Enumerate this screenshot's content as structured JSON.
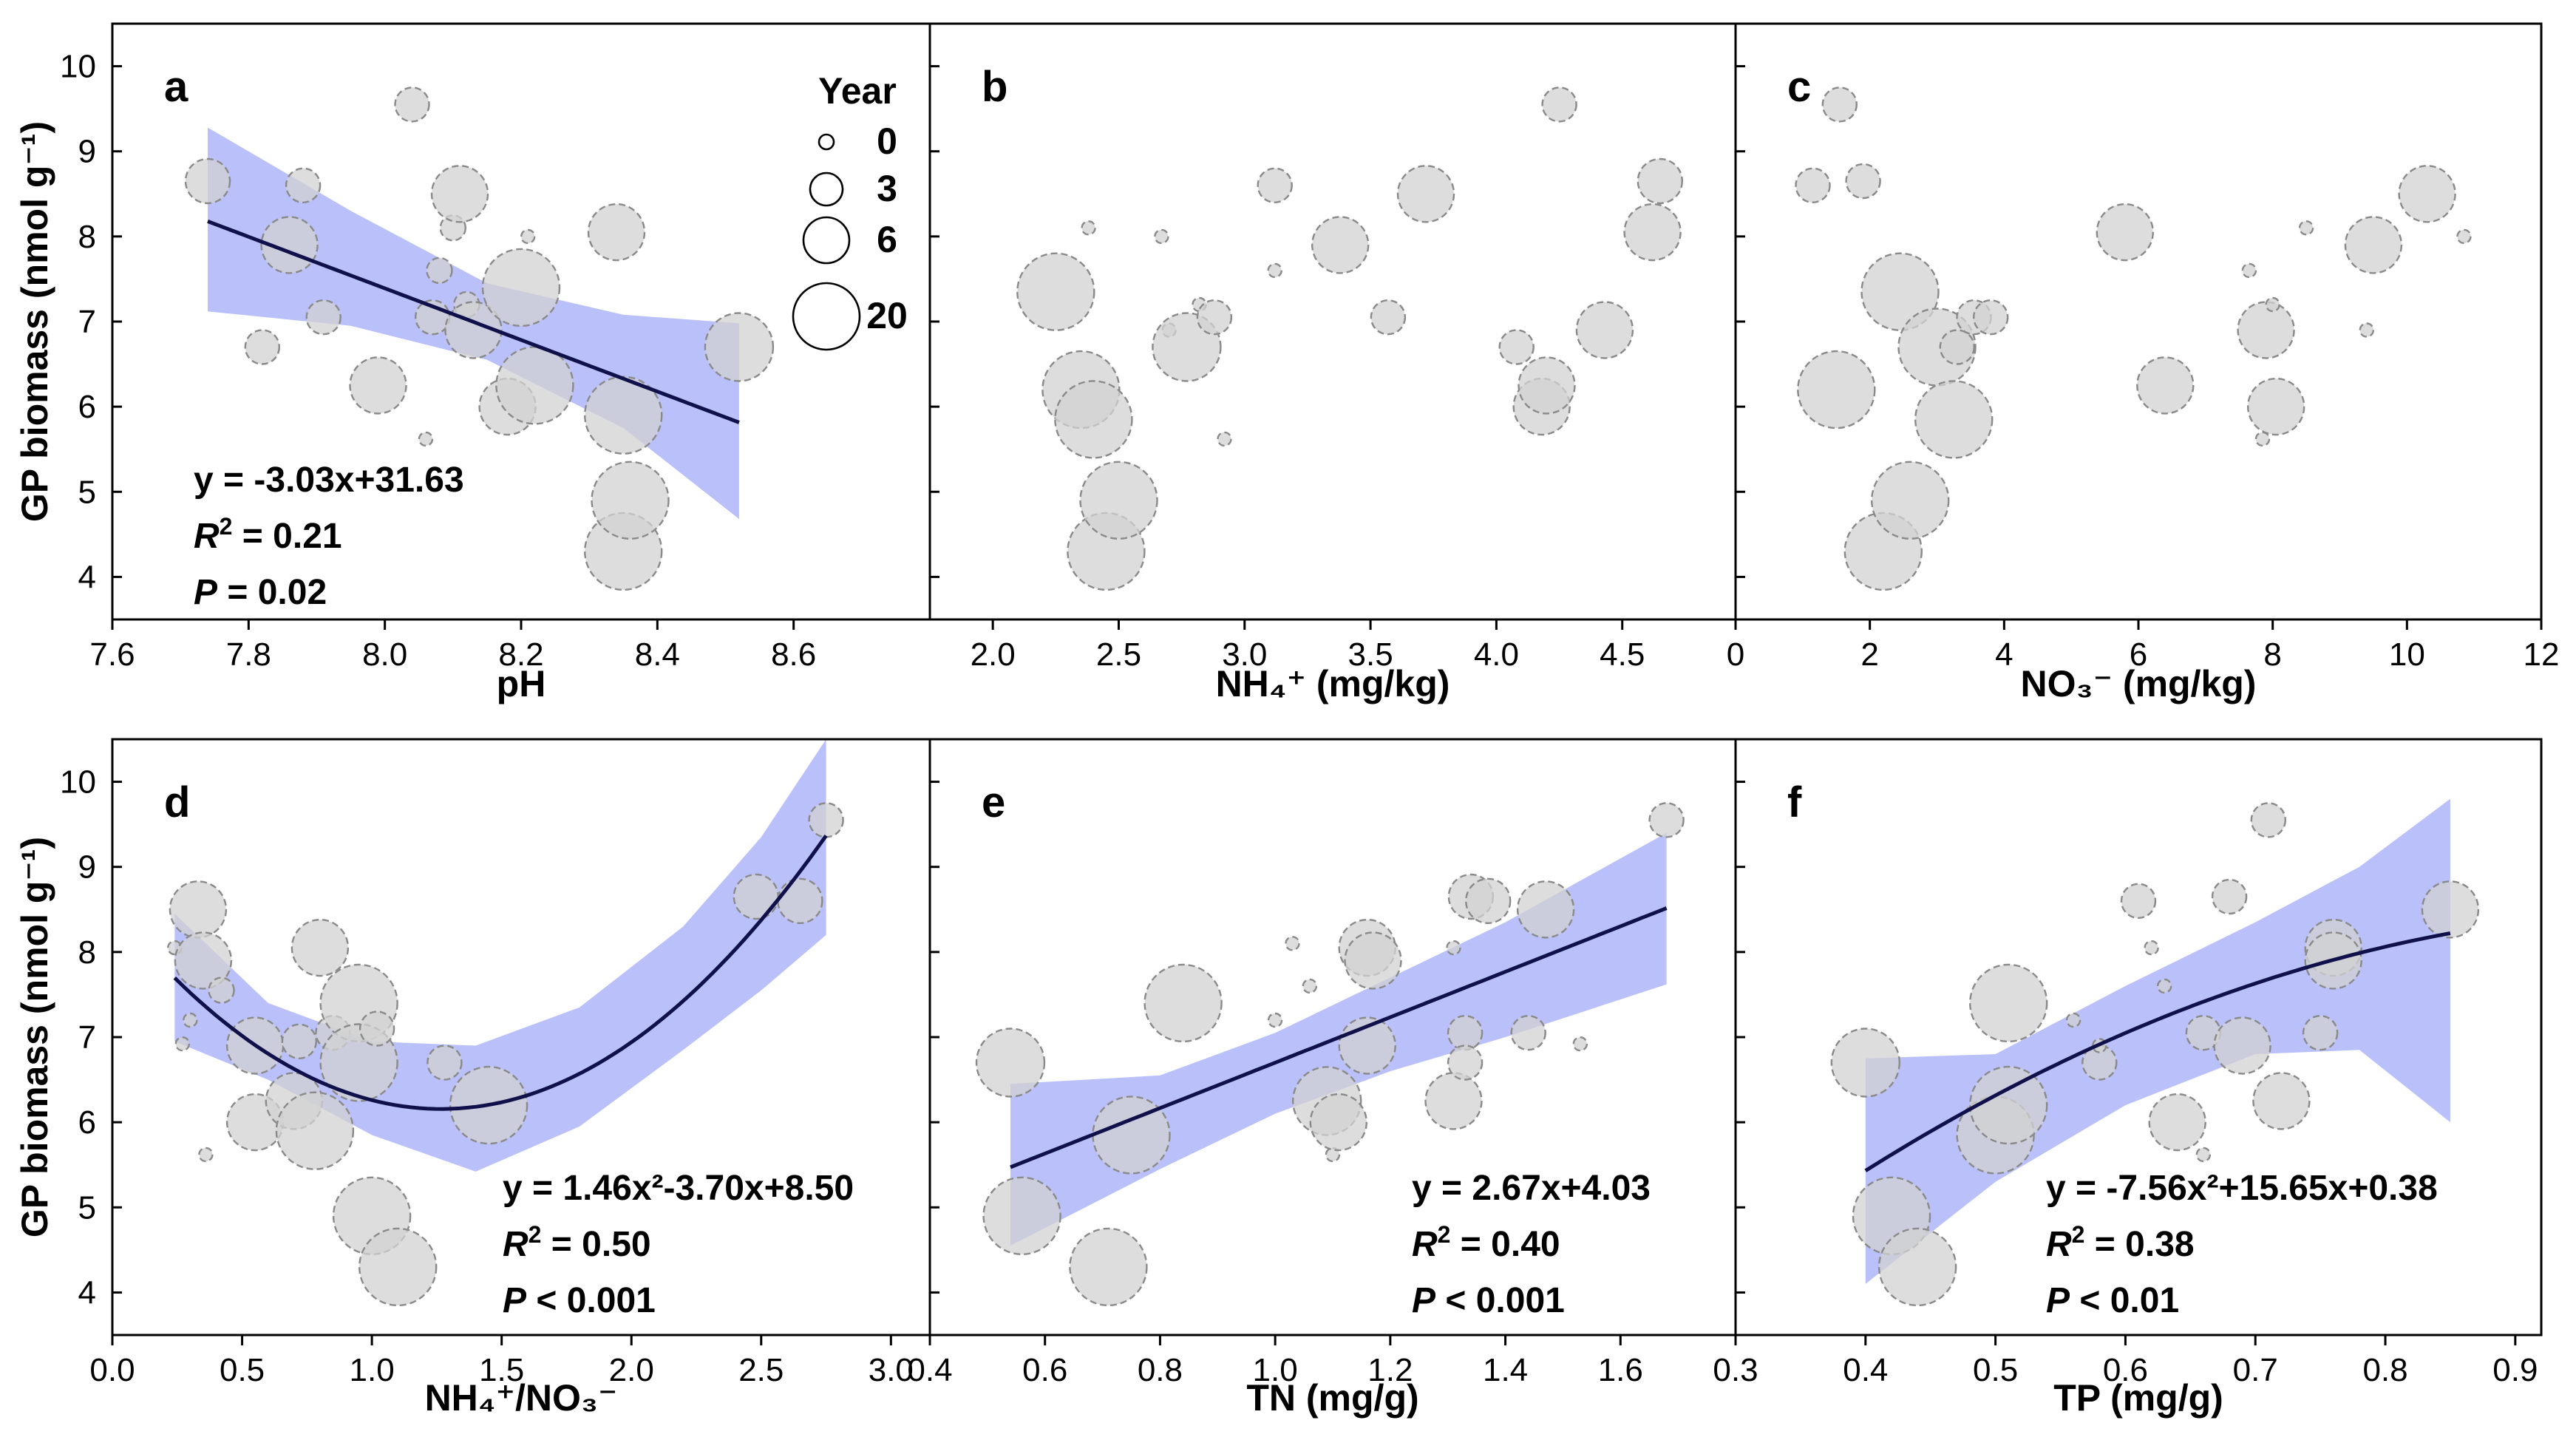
{
  "figure": {
    "y_axis_label": "GP biomass (nmol g⁻¹)",
    "legend": {
      "title": "Year",
      "entries": [
        "0",
        "3",
        "6",
        "20"
      ]
    }
  },
  "chart_data": [
    {
      "panel": "a",
      "type": "scatter",
      "xlabel": "pH",
      "xlim": [
        7.6,
        8.8
      ],
      "xticks": [
        "7.6",
        "7.8",
        "8.0",
        "8.2",
        "8.4",
        "8.6"
      ],
      "ylim": [
        3.5,
        10.5
      ],
      "yticks": [
        "4",
        "5",
        "6",
        "7",
        "8",
        "9",
        "10"
      ],
      "fit": {
        "kind": "linear",
        "coef": [
          31.63,
          -3.03
        ],
        "x_range": [
          7.74,
          8.52
        ],
        "ci_lower": [
          [
            7.74,
            7.12
          ],
          [
            7.95,
            6.95
          ],
          [
            8.15,
            6.55
          ],
          [
            8.35,
            5.75
          ],
          [
            8.52,
            4.68
          ]
        ],
        "ci_upper": [
          [
            7.74,
            9.28
          ],
          [
            7.95,
            8.3
          ],
          [
            8.15,
            7.45
          ],
          [
            8.35,
            7.08
          ],
          [
            8.52,
            6.98
          ]
        ]
      },
      "annotations": {
        "equation": "y = -3.03x+31.63",
        "r2": "= 0.21",
        "p": "= 0.02"
      },
      "points": [
        [
          7.74,
          8.65,
          3
        ],
        [
          7.82,
          6.7,
          2
        ],
        [
          7.86,
          7.9,
          4
        ],
        [
          7.88,
          8.6,
          2
        ],
        [
          7.91,
          7.05,
          2
        ],
        [
          7.99,
          6.25,
          4
        ],
        [
          8.04,
          9.55,
          2
        ],
        [
          8.06,
          5.62,
          0
        ],
        [
          8.07,
          7.05,
          2
        ],
        [
          8.08,
          7.6,
          1
        ],
        [
          8.1,
          8.1,
          1
        ],
        [
          8.11,
          8.5,
          4
        ],
        [
          8.12,
          7.2,
          1
        ],
        [
          8.13,
          6.9,
          4
        ],
        [
          8.18,
          6.0,
          4
        ],
        [
          8.2,
          7.4,
          6
        ],
        [
          8.21,
          8.0,
          0
        ],
        [
          8.22,
          6.25,
          6
        ],
        [
          8.34,
          8.05,
          4
        ],
        [
          8.35,
          5.9,
          6
        ],
        [
          8.35,
          4.3,
          6
        ],
        [
          8.36,
          4.9,
          6
        ],
        [
          8.52,
          6.7,
          5
        ]
      ]
    },
    {
      "panel": "b",
      "type": "scatter",
      "xlabel": "NH₄⁺ (mg/kg)",
      "xlim": [
        1.75,
        4.95
      ],
      "xticks": [
        "2.0",
        "2.5",
        "3.0",
        "3.5",
        "4.0",
        "4.5"
      ],
      "ylim": [
        3.5,
        10.5
      ],
      "points": [
        [
          2.25,
          7.35,
          6
        ],
        [
          2.35,
          6.2,
          6
        ],
        [
          2.38,
          8.1,
          0
        ],
        [
          2.4,
          5.85,
          6
        ],
        [
          2.45,
          4.3,
          6
        ],
        [
          2.5,
          4.9,
          6
        ],
        [
          2.67,
          8.0,
          0
        ],
        [
          2.7,
          6.9,
          0
        ],
        [
          2.77,
          6.7,
          5
        ],
        [
          2.82,
          7.2,
          0
        ],
        [
          2.88,
          7.05,
          2
        ],
        [
          2.92,
          5.62,
          0
        ],
        [
          3.12,
          8.6,
          2
        ],
        [
          3.12,
          7.6,
          0
        ],
        [
          3.38,
          7.9,
          4
        ],
        [
          3.57,
          7.05,
          2
        ],
        [
          3.72,
          8.5,
          4
        ],
        [
          4.08,
          6.7,
          2
        ],
        [
          4.18,
          6.0,
          4
        ],
        [
          4.2,
          6.25,
          4
        ],
        [
          4.25,
          9.55,
          2
        ],
        [
          4.43,
          6.9,
          4
        ],
        [
          4.62,
          8.05,
          4
        ],
        [
          4.65,
          8.65,
          3
        ]
      ]
    },
    {
      "panel": "c",
      "type": "scatter",
      "xlabel": "NO₃⁻ (mg/kg)",
      "xlim": [
        0,
        12
      ],
      "xticks": [
        "0",
        "2",
        "4",
        "6",
        "8",
        "10",
        "12"
      ],
      "ylim": [
        3.5,
        10.5
      ],
      "points": [
        [
          1.15,
          8.6,
          2
        ],
        [
          1.5,
          6.2,
          6
        ],
        [
          1.55,
          9.55,
          2
        ],
        [
          1.9,
          8.65,
          2
        ],
        [
          2.2,
          4.3,
          6
        ],
        [
          2.45,
          7.35,
          6
        ],
        [
          2.6,
          4.9,
          6
        ],
        [
          3.0,
          6.7,
          6
        ],
        [
          3.25,
          5.85,
          6
        ],
        [
          3.3,
          6.7,
          2
        ],
        [
          3.55,
          7.05,
          2
        ],
        [
          3.8,
          7.05,
          2
        ],
        [
          5.8,
          8.05,
          4
        ],
        [
          6.4,
          6.25,
          4
        ],
        [
          7.65,
          7.6,
          0
        ],
        [
          7.85,
          5.62,
          0
        ],
        [
          7.9,
          6.9,
          4
        ],
        [
          8.0,
          7.2,
          0
        ],
        [
          8.05,
          6.0,
          4
        ],
        [
          8.5,
          8.1,
          0
        ],
        [
          9.4,
          6.9,
          0
        ],
        [
          9.5,
          7.9,
          4
        ],
        [
          10.3,
          8.5,
          4
        ],
        [
          10.85,
          8.0,
          0
        ]
      ]
    },
    {
      "panel": "d",
      "type": "scatter",
      "xlabel": "NH₄⁺/NO₃⁻",
      "xlim": [
        0.0,
        3.15
      ],
      "xticks": [
        "0.0",
        "0.5",
        "1.0",
        "1.5",
        "2.0",
        "2.5",
        "3.0"
      ],
      "ylim": [
        3.5,
        10.5
      ],
      "yticks": [
        "4",
        "5",
        "6",
        "7",
        "8",
        "9",
        "10"
      ],
      "fit": {
        "kind": "quadratic",
        "coef": [
          8.5,
          -3.7,
          1.46
        ],
        "x_range": [
          0.24,
          2.75
        ],
        "ci_lower": [
          [
            0.24,
            6.95
          ],
          [
            0.6,
            6.5
          ],
          [
            1.0,
            5.85
          ],
          [
            1.4,
            5.42
          ],
          [
            1.8,
            5.95
          ],
          [
            2.2,
            6.85
          ],
          [
            2.5,
            7.55
          ],
          [
            2.75,
            8.2
          ]
        ],
        "ci_upper": [
          [
            0.24,
            8.45
          ],
          [
            0.6,
            7.4
          ],
          [
            1.0,
            6.95
          ],
          [
            1.4,
            6.9
          ],
          [
            1.8,
            7.35
          ],
          [
            2.2,
            8.3
          ],
          [
            2.5,
            9.35
          ],
          [
            2.75,
            10.5
          ]
        ]
      },
      "annotations": {
        "equation": "y = 1.46x²-3.70x+8.50",
        "r2": "= 0.50",
        "p": "< 0.001"
      },
      "points": [
        [
          0.24,
          8.05,
          0
        ],
        [
          0.27,
          6.92,
          0
        ],
        [
          0.3,
          7.2,
          0
        ],
        [
          0.33,
          8.5,
          4
        ],
        [
          0.35,
          7.9,
          4
        ],
        [
          0.36,
          5.62,
          0
        ],
        [
          0.42,
          7.55,
          1
        ],
        [
          0.55,
          6.9,
          4
        ],
        [
          0.55,
          6.0,
          4
        ],
        [
          0.7,
          6.25,
          4
        ],
        [
          0.72,
          6.95,
          2
        ],
        [
          0.78,
          5.9,
          6
        ],
        [
          0.8,
          8.05,
          4
        ],
        [
          0.85,
          7.05,
          2
        ],
        [
          0.95,
          7.4,
          6
        ],
        [
          0.95,
          6.7,
          6
        ],
        [
          1.0,
          4.9,
          6
        ],
        [
          1.02,
          7.1,
          2
        ],
        [
          1.1,
          4.3,
          6
        ],
        [
          1.28,
          6.7,
          2
        ],
        [
          1.45,
          6.2,
          6
        ],
        [
          2.48,
          8.65,
          3
        ],
        [
          2.65,
          8.6,
          3
        ],
        [
          2.75,
          9.55,
          2
        ]
      ]
    },
    {
      "panel": "e",
      "type": "scatter",
      "xlabel": "TN (mg/g)",
      "xlim": [
        0.4,
        1.8
      ],
      "xticks": [
        "0.4",
        "0.6",
        "0.8",
        "1.0",
        "1.2",
        "1.4",
        "1.6"
      ],
      "ylim": [
        3.5,
        10.5
      ],
      "fit": {
        "kind": "linear",
        "coef": [
          4.03,
          2.67
        ],
        "x_range": [
          0.54,
          1.68
        ],
        "ci_lower": [
          [
            0.54,
            4.55
          ],
          [
            0.8,
            5.45
          ],
          [
            1.0,
            6.1
          ],
          [
            1.2,
            6.6
          ],
          [
            1.4,
            7.0
          ],
          [
            1.68,
            7.62
          ]
        ],
        "ci_upper": [
          [
            0.54,
            6.45
          ],
          [
            0.8,
            6.55
          ],
          [
            1.0,
            7.05
          ],
          [
            1.2,
            7.7
          ],
          [
            1.4,
            8.35
          ],
          [
            1.68,
            9.4
          ]
        ]
      },
      "annotations": {
        "equation": "y = 2.67x+4.03",
        "r2": "= 0.40",
        "p": "< 0.001"
      },
      "points": [
        [
          0.54,
          6.7,
          5
        ],
        [
          0.56,
          4.9,
          6
        ],
        [
          0.71,
          4.3,
          6
        ],
        [
          0.75,
          5.85,
          6
        ],
        [
          0.84,
          7.4,
          6
        ],
        [
          1.0,
          7.2,
          0
        ],
        [
          1.03,
          8.1,
          0
        ],
        [
          1.06,
          7.6,
          0
        ],
        [
          1.09,
          6.25,
          5
        ],
        [
          1.1,
          5.62,
          0
        ],
        [
          1.11,
          6.0,
          4
        ],
        [
          1.16,
          8.05,
          4
        ],
        [
          1.17,
          7.9,
          4
        ],
        [
          1.16,
          6.9,
          4
        ],
        [
          1.31,
          6.25,
          4
        ],
        [
          1.31,
          8.05,
          0
        ],
        [
          1.33,
          7.05,
          2
        ],
        [
          1.33,
          6.7,
          2
        ],
        [
          1.34,
          8.65,
          3
        ],
        [
          1.37,
          8.6,
          3
        ],
        [
          1.44,
          7.05,
          2
        ],
        [
          1.47,
          8.5,
          4
        ],
        [
          1.53,
          6.92,
          0
        ],
        [
          1.68,
          9.55,
          2
        ]
      ]
    },
    {
      "panel": "f",
      "type": "scatter",
      "xlabel": "TP (mg/g)",
      "xlim": [
        0.3,
        0.92
      ],
      "xticks": [
        "0.3",
        "0.4",
        "0.5",
        "0.6",
        "0.7",
        "0.8",
        "0.9"
      ],
      "ylim": [
        3.5,
        10.5
      ],
      "fit": {
        "kind": "quadratic",
        "coef": [
          0.38,
          15.65,
          -7.56
        ],
        "x_range": [
          0.4,
          0.85
        ],
        "ci_lower": [
          [
            0.4,
            4.1
          ],
          [
            0.5,
            5.3
          ],
          [
            0.6,
            6.2
          ],
          [
            0.7,
            6.8
          ],
          [
            0.78,
            6.85
          ],
          [
            0.85,
            6.0
          ]
        ],
        "ci_upper": [
          [
            0.4,
            6.75
          ],
          [
            0.5,
            6.8
          ],
          [
            0.6,
            7.6
          ],
          [
            0.7,
            8.35
          ],
          [
            0.78,
            9.0
          ],
          [
            0.85,
            9.8
          ]
        ]
      },
      "annotations": {
        "equation": "y = -7.56x²+15.65x+0.38",
        "r2": "= 0.38",
        "p": "< 0.01"
      },
      "points": [
        [
          0.4,
          6.7,
          5
        ],
        [
          0.42,
          4.9,
          6
        ],
        [
          0.44,
          4.3,
          6
        ],
        [
          0.51,
          7.4,
          6
        ],
        [
          0.5,
          5.85,
          6
        ],
        [
          0.51,
          6.2,
          6
        ],
        [
          0.56,
          7.2,
          0
        ],
        [
          0.58,
          6.7,
          2
        ],
        [
          0.58,
          6.9,
          0
        ],
        [
          0.61,
          8.6,
          2
        ],
        [
          0.62,
          8.05,
          0
        ],
        [
          0.63,
          7.6,
          0
        ],
        [
          0.64,
          6.0,
          4
        ],
        [
          0.66,
          7.05,
          2
        ],
        [
          0.66,
          5.62,
          0
        ],
        [
          0.68,
          8.65,
          2
        ],
        [
          0.69,
          6.9,
          4
        ],
        [
          0.71,
          9.55,
          2
        ],
        [
          0.72,
          6.25,
          4
        ],
        [
          0.75,
          7.05,
          2
        ],
        [
          0.76,
          8.05,
          4
        ],
        [
          0.76,
          7.9,
          4
        ],
        [
          0.85,
          8.5,
          4
        ]
      ]
    }
  ]
}
